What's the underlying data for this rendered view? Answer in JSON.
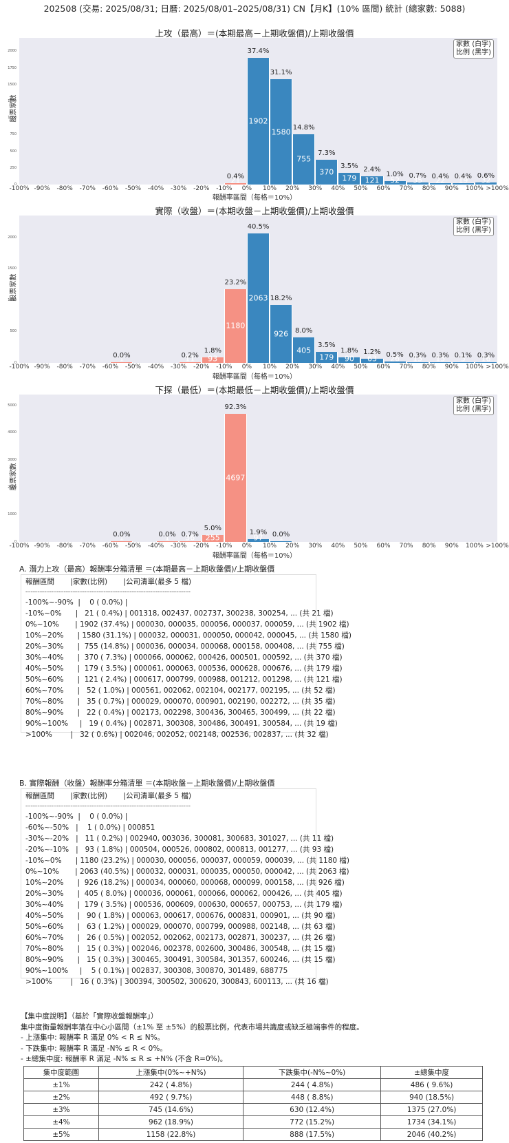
{
  "header": {
    "title": "202508 (交易: 2025/08/31; 日曆: 2025/08/01–2025/08/31) CN【月K】(10% 區間) 統計 (總家數: 5088)"
  },
  "legend": {
    "line1": "家數 (白字)",
    "line2": "比例 (黑字)"
  },
  "colors": {
    "positive": "#3a87bf",
    "negative": "#f59184",
    "plot_bg": "#eaeaf2"
  },
  "chart_data": [
    {
      "type": "bar",
      "title": "上攻（最高）＝(本期最高－上期收盤價)/上期收盤價",
      "xlabel": "報酬率區間（每格＝10%）",
      "ylabel": "股票家數",
      "ylim": [
        0,
        2200
      ],
      "yticks": [
        0,
        250,
        500,
        750,
        1000,
        1250,
        1500,
        1750,
        2000
      ],
      "tick_labels": [
        "-100%",
        "-90%",
        "-80%",
        "-70%",
        "-60%",
        "-50%",
        "-40%",
        "-30%",
        "-20%",
        "-10%",
        "0%",
        "10%",
        "20%",
        "30%",
        "40%",
        "50%",
        "60%",
        "70%",
        "80%",
        "90%",
        "100%",
        ">100%"
      ],
      "bars": [
        {
          "bin": 9,
          "count": 21,
          "pct": "0.4%",
          "sign": "neg"
        },
        {
          "bin": 10,
          "count": 1902,
          "pct": "37.4%",
          "sign": "pos"
        },
        {
          "bin": 11,
          "count": 1580,
          "pct": "31.1%",
          "sign": "pos"
        },
        {
          "bin": 12,
          "count": 755,
          "pct": "14.8%",
          "sign": "pos"
        },
        {
          "bin": 13,
          "count": 370,
          "pct": "7.3%",
          "sign": "pos"
        },
        {
          "bin": 14,
          "count": 179,
          "pct": "3.5%",
          "sign": "pos"
        },
        {
          "bin": 15,
          "count": 121,
          "pct": "2.4%",
          "sign": "pos"
        },
        {
          "bin": 16,
          "count": 52,
          "pct": "1.0%",
          "sign": "pos"
        },
        {
          "bin": 17,
          "count": 35,
          "pct": "0.7%",
          "sign": "pos"
        },
        {
          "bin": 18,
          "count": 22,
          "pct": "0.4%",
          "sign": "pos"
        },
        {
          "bin": 19,
          "count": 19,
          "pct": "0.4%",
          "sign": "pos"
        },
        {
          "bin": 20,
          "count": 32,
          "pct": "0.6%",
          "sign": "pos"
        }
      ]
    },
    {
      "type": "bar",
      "title": "實際（收盤）＝(本期收盤－上期收盤價)/上期收盤價",
      "xlabel": "報酬率區間（每格＝10%）",
      "ylabel": "股票家數",
      "ylim": [
        0,
        2350
      ],
      "yticks": [
        0,
        500,
        1000,
        1500,
        2000
      ],
      "tick_labels": [
        "-100%",
        "-90%",
        "-80%",
        "-70%",
        "-60%",
        "-50%",
        "-40%",
        "-30%",
        "-20%",
        "-10%",
        "0%",
        "10%",
        "20%",
        "30%",
        "40%",
        "50%",
        "60%",
        "70%",
        "80%",
        "90%",
        "100%",
        ">100%"
      ],
      "bars": [
        {
          "bin": 4,
          "count": 1,
          "pct": "0.0%",
          "sign": "neg"
        },
        {
          "bin": 7,
          "count": 11,
          "pct": "0.2%",
          "sign": "neg"
        },
        {
          "bin": 8,
          "count": 93,
          "pct": "1.8%",
          "sign": "neg"
        },
        {
          "bin": 9,
          "count": 1180,
          "pct": "23.2%",
          "sign": "neg"
        },
        {
          "bin": 10,
          "count": 2063,
          "pct": "40.5%",
          "sign": "pos"
        },
        {
          "bin": 11,
          "count": 926,
          "pct": "18.2%",
          "sign": "pos"
        },
        {
          "bin": 12,
          "count": 405,
          "pct": "8.0%",
          "sign": "pos"
        },
        {
          "bin": 13,
          "count": 179,
          "pct": "3.5%",
          "sign": "pos"
        },
        {
          "bin": 14,
          "count": 90,
          "pct": "1.8%",
          "sign": "pos"
        },
        {
          "bin": 15,
          "count": 63,
          "pct": "1.2%",
          "sign": "pos"
        },
        {
          "bin": 16,
          "count": 26,
          "pct": "0.5%",
          "sign": "pos"
        },
        {
          "bin": 17,
          "count": 15,
          "pct": "0.3%",
          "sign": "pos"
        },
        {
          "bin": 18,
          "count": 15,
          "pct": "0.3%",
          "sign": "pos"
        },
        {
          "bin": 19,
          "count": 5,
          "pct": "0.1%",
          "sign": "pos"
        },
        {
          "bin": 20,
          "count": 16,
          "pct": "0.3%",
          "sign": "pos"
        }
      ]
    },
    {
      "type": "bar",
      "title": "下探（最低）＝(本期最低－上期收盤價)/上期收盤價",
      "xlabel": "報酬率區間（每格＝10%）",
      "ylabel": "股票家數",
      "ylim": [
        0,
        5400
      ],
      "yticks": [
        0,
        1000,
        2000,
        3000,
        4000,
        5000
      ],
      "tick_labels": [
        "-100%",
        "-90%",
        "-80%",
        "-70%",
        "-60%",
        "-50%",
        "-40%",
        "-30%",
        "-20%",
        "-10%",
        "0%",
        "10%",
        "20%",
        "30%",
        "40%",
        "50%",
        "60%",
        "70%",
        "80%",
        "90%",
        "100%",
        ">100%"
      ],
      "bars": [
        {
          "bin": 4,
          "count": 1,
          "pct": "0.0%",
          "sign": "neg"
        },
        {
          "bin": 6,
          "count": 1,
          "pct": "0.0%",
          "sign": "neg"
        },
        {
          "bin": 7,
          "count": 36,
          "pct": "0.7%",
          "sign": "neg"
        },
        {
          "bin": 8,
          "count": 255,
          "pct": "5.0%",
          "sign": "neg"
        },
        {
          "bin": 9,
          "count": 4697,
          "pct": "92.3%",
          "sign": "neg"
        },
        {
          "bin": 10,
          "count": 97,
          "pct": "1.9%",
          "sign": "pos"
        },
        {
          "bin": 11,
          "count": 1,
          "pct": "0.0%",
          "sign": "pos"
        }
      ]
    }
  ],
  "section_a": {
    "title": "A. 潛力上攻（最高）報酬率分箱清單 ＝(本期最高－上期收盤價)/上期收盤價",
    "header": "報酬區間       |家數(比例)       |公司清單(最多 5 檔)",
    "divider": "-----------------------------------------------------------------------------------------------",
    "rows": [
      "-100%~-90%  |    0 ( 0.0%) |",
      "-10%~0%      |   21 ( 0.4%) | 001318, 002437, 002737, 300238, 300254, ... (共 21 檔)",
      "0%~10%       | 1902 (37.4%) | 000030, 000035, 000056, 000037, 000059, ... (共 1902 檔)",
      "10%~20%      | 1580 (31.1%) | 000032, 000031, 000050, 000042, 000045, ... (共 1580 檔)",
      "20%~30%      |  755 (14.8%) | 000036, 000034, 000068, 000158, 000408, ... (共 755 檔)",
      "30%~40%      |  370 ( 7.3%) | 000066, 000062, 000426, 000501, 000592, ... (共 370 檔)",
      "40%~50%      |  179 ( 3.5%) | 000061, 000063, 000536, 000628, 000676, ... (共 179 檔)",
      "50%~60%      |  121 ( 2.4%) | 000617, 000799, 000988, 001212, 001298, ... (共 121 檔)",
      "60%~70%      |   52 ( 1.0%) | 000561, 002062, 002104, 002177, 002195, ... (共 52 檔)",
      "70%~80%      |   35 ( 0.7%) | 000029, 000070, 000901, 002190, 002272, ... (共 35 檔)",
      "80%~90%      |   22 ( 0.4%) | 002173, 002298, 300436, 300465, 300499, ... (共 22 檔)",
      "90%~100%     |   19 ( 0.4%) | 002871, 300308, 300486, 300491, 300584, ... (共 19 檔)",
      ">100%        |   32 ( 0.6%) | 002046, 002052, 002148, 002536, 002837, ... (共 32 檔)"
    ]
  },
  "section_b": {
    "title": "B. 實際報酬（收盤）報酬率分箱清單 ＝(本期收盤－上期收盤價)/上期收盤價",
    "header": "報酬區間       |家數(比例)       |公司清單(最多 5 檔)",
    "divider": "-----------------------------------------------------------------------------------------------",
    "rows": [
      "-100%~-90%  |    0 ( 0.0%) |",
      "-60%~-50%   |    1 ( 0.0%) | 000851",
      "-30%~-20%   |   11 ( 0.2%) | 002940, 003036, 300081, 300683, 301027, ... (共 11 檔)",
      "-20%~-10%   |   93 ( 1.8%) | 000504, 000526, 000802, 000813, 001277, ... (共 93 檔)",
      "-10%~0%      | 1180 (23.2%) | 000030, 000056, 000037, 000059, 000039, ... (共 1180 檔)",
      "0%~10%       | 2063 (40.5%) | 000032, 000031, 000035, 000050, 000042, ... (共 2063 檔)",
      "10%~20%      |  926 (18.2%) | 000034, 000060, 000068, 000099, 000158, ... (共 926 檔)",
      "20%~30%      |  405 ( 8.0%) | 000036, 000061, 000066, 000062, 000426, ... (共 405 檔)",
      "30%~40%      |  179 ( 3.5%) | 000536, 000609, 000630, 000657, 000753, ... (共 179 檔)",
      "40%~50%      |   90 ( 1.8%) | 000063, 000617, 000676, 000831, 000901, ... (共 90 檔)",
      "50%~60%      |   63 ( 1.2%) | 000029, 000070, 000799, 000988, 002148, ... (共 63 檔)",
      "60%~70%      |   26 ( 0.5%) | 002052, 002062, 002173, 002871, 300237, ... (共 26 檔)",
      "70%~80%      |   15 ( 0.3%) | 002046, 002378, 002600, 300486, 300548, ... (共 15 檔)",
      "80%~90%      |   15 ( 0.3%) | 300465, 300491, 300584, 301357, 600246, ... (共 15 檔)",
      "90%~100%     |    5 ( 0.1%) | 002837, 300308, 300870, 301489, 688775",
      ">100%        |   16 ( 0.3%) | 300394, 300502, 300620, 300843, 600113, ... (共 16 檔)"
    ]
  },
  "concentration": {
    "heading": "【集中度說明】（基於「實際收盤報酬率」）",
    "desc": "集中度衡量報酬率落在中心小區間（±1% 至 ±5%）的股票比例，代表市場共識度或缺乏極端事件的程度。",
    "bullets": [
      "- 上漲集中: 報酬率 R 滿足 0% < R ≤ N%。",
      "- 下跌集中: 報酬率 R 滿足 -N% ≤ R < 0%。",
      "- ±總集中度: 報酬率 R 滿足 -N% ≤ R ≤ +N% (不含 R=0%)。"
    ],
    "columns": [
      "集中度範圍",
      "上漲集中(0%~+N%)",
      "下跌集中(-N%~0%)",
      "±總集中度"
    ],
    "rows": [
      [
        "±1%",
        "242 ( 4.8%)",
        "244 ( 4.8%)",
        "486 ( 9.6%)"
      ],
      [
        "±2%",
        "492 ( 9.7%)",
        "448 ( 8.8%)",
        "940 (18.5%)"
      ],
      [
        "±3%",
        "745 (14.6%)",
        "630 (12.4%)",
        "1375 (27.0%)"
      ],
      [
        "±4%",
        "962 (18.9%)",
        "772 (15.2%)",
        "1734 (34.1%)"
      ],
      [
        "±5%",
        "1158 (22.8%)",
        "888 (17.5%)",
        "2046 (40.2%)"
      ]
    ]
  }
}
